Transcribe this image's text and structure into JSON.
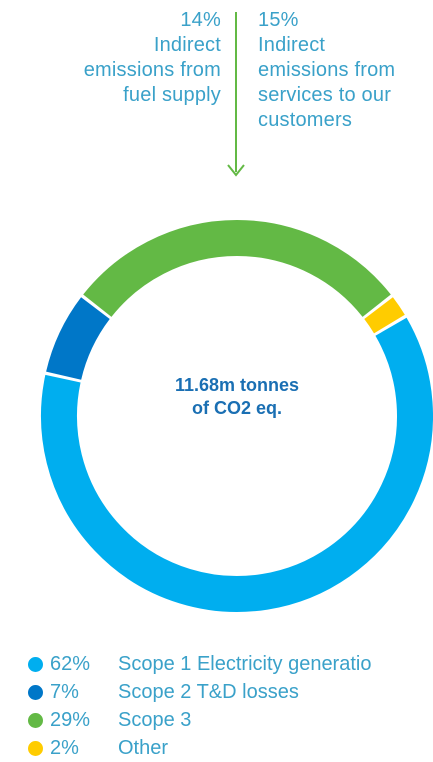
{
  "annotations": {
    "left": {
      "percent": "14%",
      "lines": [
        "Indirect",
        "emissions from",
        "fuel supply"
      ]
    },
    "right": {
      "percent": "15%",
      "lines": [
        "Indirect",
        "emissions from",
        "services to our",
        "customers"
      ]
    }
  },
  "center_label": {
    "line1": "11.68m tonnes",
    "line2": "of CO2 eq."
  },
  "colors": {
    "text": "#3aa1c9",
    "center_text": "#1a6fb3",
    "arrow": "#63b945"
  },
  "chart_data": {
    "type": "pie",
    "title": "",
    "total": "11.68m tonnes of CO2 eq.",
    "series": [
      {
        "name": "Scope 1 Electricity generatio",
        "percent_label": "62%",
        "value": 62,
        "color": "#00aeef"
      },
      {
        "name": "Scope 2 T&D losses",
        "percent_label": "7%",
        "value": 7,
        "color": "#0077c8"
      },
      {
        "name": "Scope 3",
        "percent_label": "29%",
        "value": 29,
        "color": "#63b945"
      },
      {
        "name": "Other",
        "percent_label": "2%",
        "value": 2,
        "color": "#ffcc00"
      }
    ],
    "legend_position": "bottom-left"
  }
}
